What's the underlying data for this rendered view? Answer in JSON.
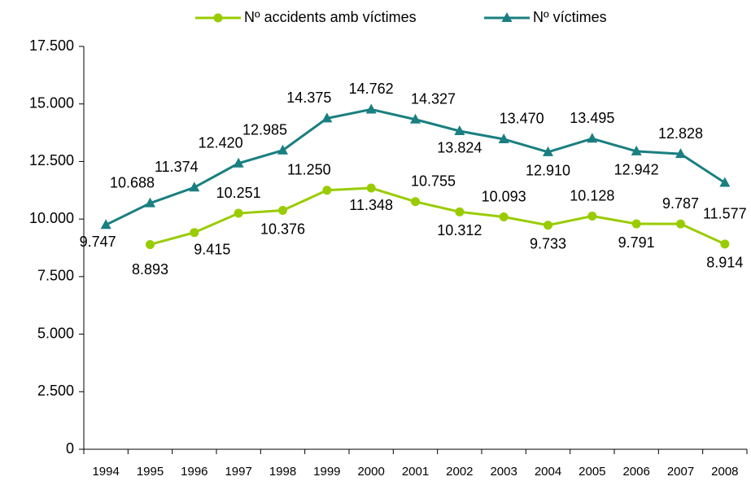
{
  "chart_data": {
    "type": "line",
    "categories": [
      "1994",
      "1995",
      "1996",
      "1997",
      "1998",
      "1999",
      "2000",
      "2001",
      "2002",
      "2003",
      "2004",
      "2005",
      "2006",
      "2007",
      "2008"
    ],
    "series": [
      {
        "name": "Nº accidents amb víctimes",
        "color": "#99cc00",
        "marker": "circle",
        "values": [
          null,
          8893,
          9415,
          10251,
          10376,
          11250,
          11348,
          10755,
          10312,
          10093,
          9733,
          10128,
          9791,
          9787,
          8914
        ],
        "value_labels": [
          null,
          "8.893",
          "9.415",
          "10.251",
          "10.376",
          "11.250",
          "11.348",
          "10.755",
          "10.312",
          "10.093",
          "9.733",
          "10.128",
          "9.791",
          "9.787",
          "8.914"
        ]
      },
      {
        "name": "Nº víctimes",
        "color": "#1a7f80",
        "marker": "triangle",
        "values": [
          9747,
          10688,
          11374,
          12420,
          12985,
          14375,
          14762,
          14327,
          13824,
          13470,
          12910,
          13495,
          12942,
          12828,
          11577
        ],
        "value_labels": [
          "9.747",
          "10.688",
          "11.374",
          "12.420",
          "12.985",
          "14.375",
          "14.762",
          "14.327",
          "13.824",
          "13.470",
          "12.910",
          "13.495",
          "12.942",
          "12.828",
          "11.577"
        ]
      }
    ],
    "ylim": [
      0,
      17500
    ],
    "yticks": [
      0,
      {
        "value": 2500,
        "label": "2.500"
      },
      {
        "value": 5000,
        "label": "5.000"
      },
      {
        "value": 7500,
        "label": "7.500"
      },
      {
        "value": 10000,
        "label": "10.000"
      },
      {
        "value": 12500,
        "label": "12.500"
      },
      {
        "value": 15000,
        "label": "15.000"
      },
      {
        "value": 17500,
        "label": "17.500"
      }
    ],
    "legend": "top"
  }
}
